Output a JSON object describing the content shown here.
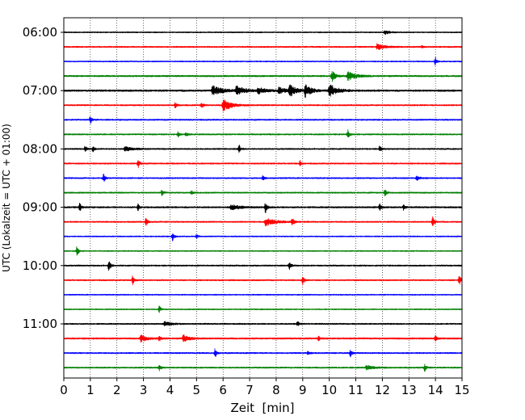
{
  "chart_data": {
    "type": "line",
    "title": "",
    "xlabel": "Zeit  [min]",
    "ylabel": "UTC (Lokalzeit = UTC + 01:00)",
    "xlim": [
      0,
      15
    ],
    "x_ticks": [
      "0",
      "1",
      "2",
      "3",
      "4",
      "5",
      "6",
      "7",
      "8",
      "9",
      "10",
      "11",
      "12",
      "13",
      "14",
      "15"
    ],
    "y_tick_labels": [
      "06:00",
      "07:00",
      "08:00",
      "09:00",
      "10:00",
      "11:00"
    ],
    "grid": "vertical-dotted",
    "trace_interval_minutes": 15,
    "color_cycle": [
      "#000000",
      "#ff0000",
      "#0000ff",
      "#008000"
    ],
    "traces": [
      {
        "start": "06:00",
        "color": "#000000",
        "noise": 0.25,
        "events": [
          [
            12.1,
            1.0,
            0.15
          ]
        ]
      },
      {
        "start": "06:15",
        "color": "#ff0000",
        "noise": 0.3,
        "events": [
          [
            11.8,
            1.3,
            0.25
          ],
          [
            13.5,
            0.6,
            0.05
          ]
        ]
      },
      {
        "start": "06:30",
        "color": "#0000ff",
        "noise": 0.25,
        "events": [
          [
            14.0,
            2.0,
            0.05
          ]
        ]
      },
      {
        "start": "06:45",
        "color": "#008000",
        "noise": 0.35,
        "events": [
          [
            10.1,
            2.5,
            0.12
          ],
          [
            10.7,
            2.2,
            0.25
          ]
        ]
      },
      {
        "start": "07:00",
        "color": "#000000",
        "noise": 0.4,
        "events": [
          [
            5.6,
            2.0,
            0.35
          ],
          [
            6.5,
            1.8,
            0.3
          ],
          [
            7.3,
            1.5,
            0.25
          ],
          [
            8.1,
            1.5,
            0.2
          ],
          [
            8.5,
            3.0,
            0.2
          ],
          [
            9.1,
            3.0,
            0.2
          ],
          [
            10.0,
            3.5,
            0.25
          ]
        ]
      },
      {
        "start": "07:15",
        "color": "#ff0000",
        "noise": 0.3,
        "events": [
          [
            4.2,
            1.5,
            0.05
          ],
          [
            5.2,
            1.5,
            0.05
          ],
          [
            6.0,
            3.0,
            0.25
          ]
        ]
      },
      {
        "start": "07:30",
        "color": "#0000ff",
        "noise": 0.3,
        "events": [
          [
            1.0,
            2.0,
            0.05
          ]
        ]
      },
      {
        "start": "07:45",
        "color": "#008000",
        "noise": 0.3,
        "events": [
          [
            4.3,
            1.2,
            0.05
          ],
          [
            4.6,
            1.2,
            0.05
          ],
          [
            10.7,
            2.0,
            0.05
          ]
        ]
      },
      {
        "start": "08:00",
        "color": "#000000",
        "noise": 0.3,
        "events": [
          [
            0.8,
            1.5,
            0.05
          ],
          [
            1.1,
            1.5,
            0.05
          ],
          [
            2.3,
            1.0,
            0.3
          ],
          [
            6.6,
            2.0,
            0.05
          ],
          [
            11.9,
            1.5,
            0.05
          ]
        ]
      },
      {
        "start": "08:15",
        "color": "#ff0000",
        "noise": 0.3,
        "events": [
          [
            2.8,
            2.0,
            0.05
          ],
          [
            8.9,
            1.2,
            0.05
          ]
        ]
      },
      {
        "start": "08:30",
        "color": "#0000ff",
        "noise": 0.3,
        "events": [
          [
            1.5,
            2.0,
            0.05
          ],
          [
            7.5,
            1.0,
            0.05
          ],
          [
            13.3,
            1.0,
            0.1
          ]
        ]
      },
      {
        "start": "08:45",
        "color": "#008000",
        "noise": 0.3,
        "events": [
          [
            3.7,
            1.5,
            0.05
          ],
          [
            4.8,
            1.0,
            0.05
          ],
          [
            12.1,
            2.0,
            0.05
          ]
        ]
      },
      {
        "start": "09:00",
        "color": "#000000",
        "noise": 0.35,
        "events": [
          [
            0.6,
            2.0,
            0.05
          ],
          [
            2.8,
            1.5,
            0.05
          ],
          [
            6.3,
            1.0,
            0.35
          ],
          [
            7.6,
            2.5,
            0.05
          ],
          [
            11.9,
            1.5,
            0.05
          ],
          [
            12.8,
            1.2,
            0.05
          ]
        ]
      },
      {
        "start": "09:15",
        "color": "#ff0000",
        "noise": 0.3,
        "events": [
          [
            3.1,
            2.0,
            0.05
          ],
          [
            7.6,
            1.8,
            0.35
          ],
          [
            8.6,
            2.2,
            0.05
          ],
          [
            13.9,
            2.5,
            0.05
          ]
        ]
      },
      {
        "start": "09:30",
        "color": "#0000ff",
        "noise": 0.25,
        "events": [
          [
            4.1,
            2.0,
            0.05
          ],
          [
            5.0,
            1.0,
            0.05
          ]
        ]
      },
      {
        "start": "09:45",
        "color": "#008000",
        "noise": 0.25,
        "events": [
          [
            0.5,
            2.5,
            0.05
          ]
        ]
      },
      {
        "start": "10:00",
        "color": "#000000",
        "noise": 0.3,
        "events": [
          [
            1.7,
            3.0,
            0.05
          ],
          [
            8.5,
            2.0,
            0.05
          ]
        ]
      },
      {
        "start": "10:15",
        "color": "#ff0000",
        "noise": 0.3,
        "events": [
          [
            2.6,
            2.5,
            0.05
          ],
          [
            9.0,
            2.0,
            0.05
          ],
          [
            14.9,
            2.5,
            0.05
          ]
        ]
      },
      {
        "start": "10:30",
        "color": "#0000ff",
        "noise": 0.25,
        "events": []
      },
      {
        "start": "10:45",
        "color": "#008000",
        "noise": 0.25,
        "events": [
          [
            3.6,
            1.5,
            0.05
          ]
        ]
      },
      {
        "start": "11:00",
        "color": "#000000",
        "noise": 0.3,
        "events": [
          [
            3.8,
            1.0,
            0.2
          ],
          [
            8.8,
            1.5,
            0.05
          ]
        ]
      },
      {
        "start": "11:15",
        "color": "#ff0000",
        "noise": 0.35,
        "events": [
          [
            2.9,
            1.5,
            0.2
          ],
          [
            3.6,
            1.2,
            0.05
          ],
          [
            4.5,
            1.5,
            0.2
          ],
          [
            9.6,
            1.0,
            0.05
          ],
          [
            14.0,
            1.5,
            0.05
          ]
        ]
      },
      {
        "start": "11:30",
        "color": "#0000ff",
        "noise": 0.3,
        "events": [
          [
            5.7,
            2.0,
            0.05
          ],
          [
            9.2,
            1.0,
            0.05
          ],
          [
            10.8,
            2.0,
            0.05
          ]
        ]
      },
      {
        "start": "11:45",
        "color": "#008000",
        "noise": 0.3,
        "events": [
          [
            3.6,
            1.5,
            0.05
          ],
          [
            11.4,
            1.0,
            0.25
          ],
          [
            13.6,
            1.8,
            0.05
          ]
        ]
      }
    ]
  }
}
